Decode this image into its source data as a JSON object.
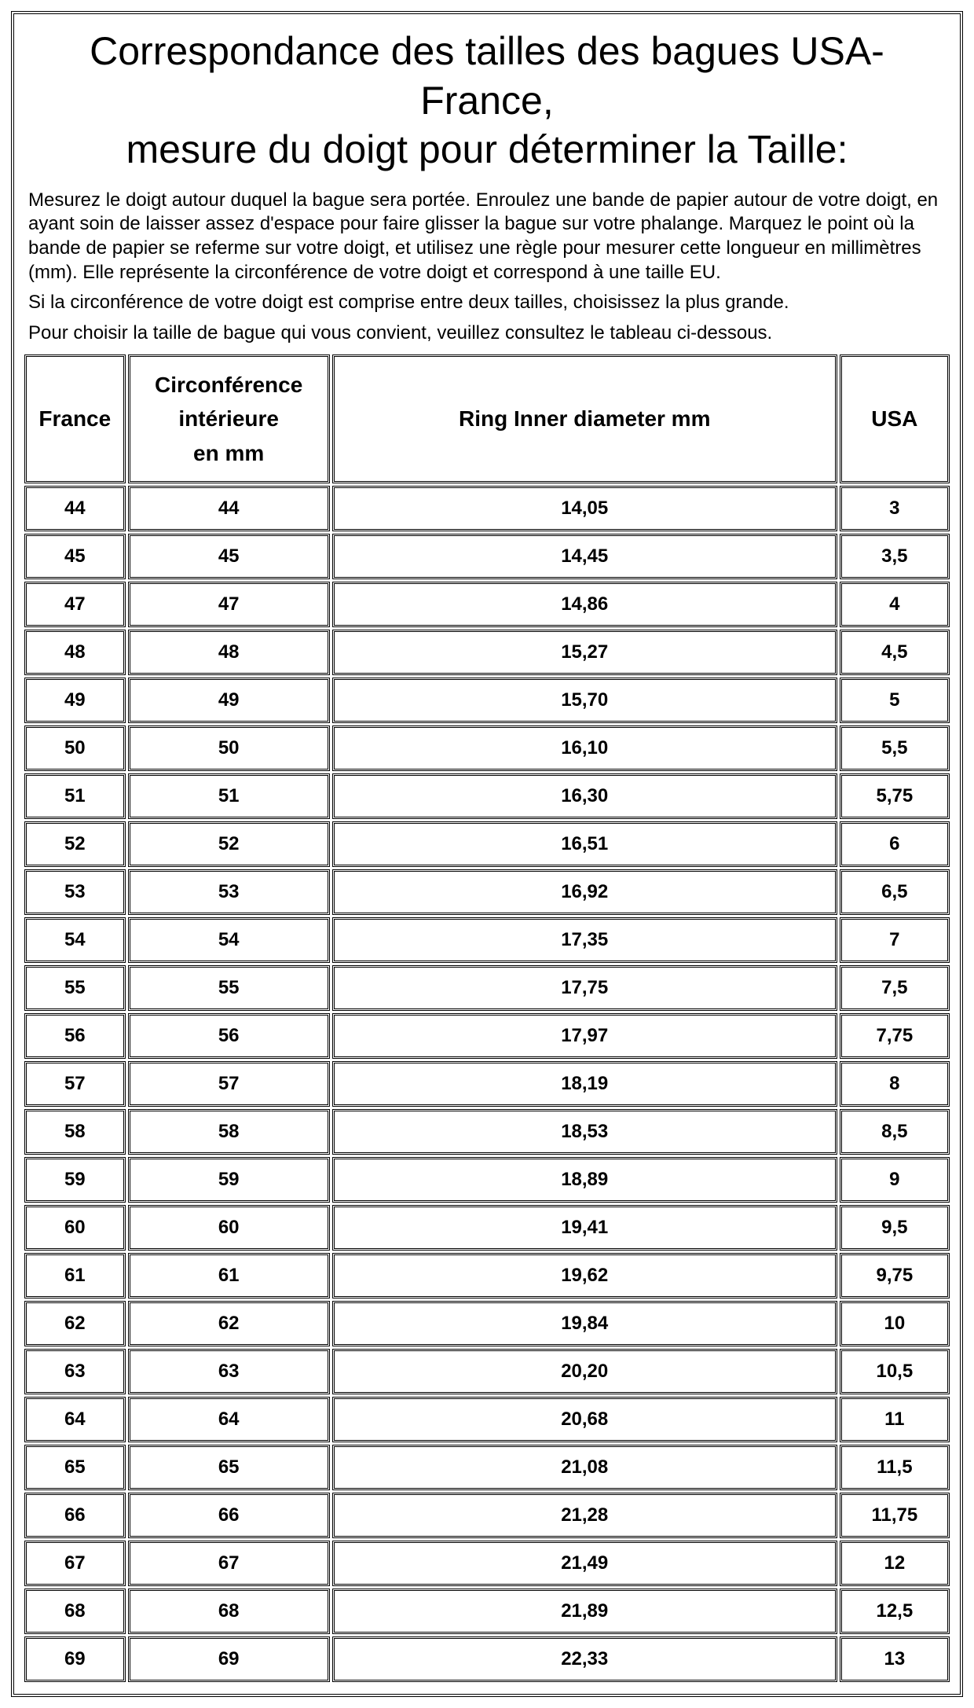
{
  "title": "Correspondance des tailles des bagues USA-France,\nmesure du doigt pour déterminer la Taille:",
  "instructions": {
    "p1": "Mesurez le doigt autour duquel la bague sera portée. Enroulez une bande de papier autour de votre doigt, en ayant soin de laisser assez d'espace pour faire glisser la bague sur votre phalange. Marquez le point où la bande de papier se referme sur votre doigt, et utilisez une règle pour mesurer cette longueur en millimètres (mm). Elle représente la circonférence de votre doigt et correspond à une taille EU.",
    "p2": "Si la circonférence de votre doigt est comprise entre deux tailles, choisissez la plus grande.",
    "p3": "Pour choisir la taille de bague qui vous convient, veuillez consultez le tableau ci-dessous."
  },
  "table": {
    "type": "table",
    "background_color": "#ffffff",
    "border_color": "#000000",
    "border_style": "double",
    "header_font_weight": "bold",
    "header_font_size_pt": 21,
    "cell_font_size_pt": 18,
    "cell_font_weight": "bold",
    "columns": [
      {
        "key": "france",
        "label": "France",
        "width_pct": 11,
        "align": "center"
      },
      {
        "key": "circonference",
        "label": "Circonférence\nintérieure\nen mm",
        "width_pct": 22,
        "align": "center"
      },
      {
        "key": "diameter",
        "label": "Ring Inner diameter mm",
        "width_pct": 55,
        "align": "center"
      },
      {
        "key": "usa",
        "label": "USA",
        "width_pct": 12,
        "align": "center"
      }
    ],
    "rows": [
      {
        "france": "44",
        "circonference": "44",
        "diameter": "14,05",
        "usa": "3"
      },
      {
        "france": "45",
        "circonference": "45",
        "diameter": "14,45",
        "usa": "3,5"
      },
      {
        "france": "47",
        "circonference": "47",
        "diameter": "14,86",
        "usa": "4"
      },
      {
        "france": "48",
        "circonference": "48",
        "diameter": "15,27",
        "usa": "4,5"
      },
      {
        "france": "49",
        "circonference": "49",
        "diameter": "15,70",
        "usa": "5"
      },
      {
        "france": "50",
        "circonference": "50",
        "diameter": "16,10",
        "usa": "5,5"
      },
      {
        "france": "51",
        "circonference": "51",
        "diameter": "16,30",
        "usa": "5,75"
      },
      {
        "france": "52",
        "circonference": "52",
        "diameter": "16,51",
        "usa": "6"
      },
      {
        "france": "53",
        "circonference": "53",
        "diameter": "16,92",
        "usa": "6,5"
      },
      {
        "france": "54",
        "circonference": "54",
        "diameter": "17,35",
        "usa": "7"
      },
      {
        "france": "55",
        "circonference": "55",
        "diameter": "17,75",
        "usa": "7,5"
      },
      {
        "france": "56",
        "circonference": "56",
        "diameter": "17,97",
        "usa": "7,75"
      },
      {
        "france": "57",
        "circonference": "57",
        "diameter": "18,19",
        "usa": "8"
      },
      {
        "france": "58",
        "circonference": "58",
        "diameter": "18,53",
        "usa": "8,5"
      },
      {
        "france": "59",
        "circonference": "59",
        "diameter": "18,89",
        "usa": "9"
      },
      {
        "france": "60",
        "circonference": "60",
        "diameter": "19,41",
        "usa": "9,5"
      },
      {
        "france": "61",
        "circonference": "61",
        "diameter": "19,62",
        "usa": "9,75"
      },
      {
        "france": "62",
        "circonference": "62",
        "diameter": "19,84",
        "usa": "10"
      },
      {
        "france": "63",
        "circonference": "63",
        "diameter": "20,20",
        "usa": "10,5"
      },
      {
        "france": "64",
        "circonference": "64",
        "diameter": "20,68",
        "usa": "11"
      },
      {
        "france": "65",
        "circonference": "65",
        "diameter": "21,08",
        "usa": "11,5"
      },
      {
        "france": "66",
        "circonference": "66",
        "diameter": "21,28",
        "usa": "11,75"
      },
      {
        "france": "67",
        "circonference": "67",
        "diameter": "21,49",
        "usa": "12"
      },
      {
        "france": "68",
        "circonference": "68",
        "diameter": "21,89",
        "usa": "12,5"
      },
      {
        "france": "69",
        "circonference": "69",
        "diameter": "22,33",
        "usa": "13"
      }
    ]
  }
}
